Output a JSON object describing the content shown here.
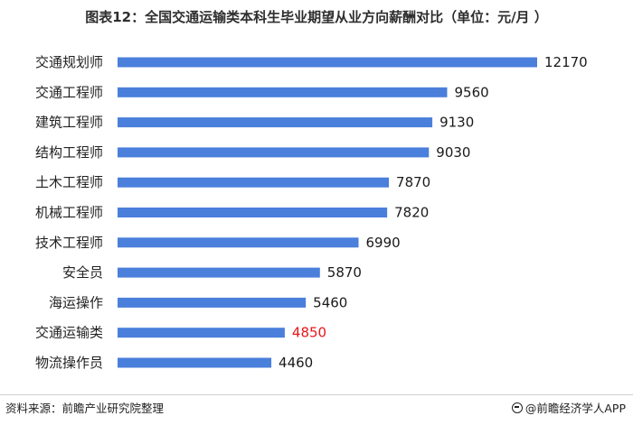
{
  "title": "图表12：全国交通运输类本科生毕业期望从业方向薪酬对比（单位：元/月  ）",
  "footer": {
    "source": "资料来源：前瞻产业研究院整理",
    "brand": "@前瞻经济学人APP"
  },
  "colors": {
    "bar": "#4a7fdb",
    "highlight_value": "#e8161a",
    "value_text": "#1a1a1a",
    "category_text": "#222222"
  },
  "chart_data": {
    "type": "bar",
    "orientation": "horizontal",
    "categories": [
      "交通规划师",
      "交通工程师",
      "建筑工程师",
      "结构工程师",
      "土木工程师",
      "机械工程师",
      "技术工程师",
      "安全员",
      "海运操作",
      "交通运输类",
      "物流操作员"
    ],
    "values": [
      12170,
      9560,
      9130,
      9030,
      7870,
      7820,
      6990,
      5870,
      5460,
      4850,
      4460
    ],
    "value_labels": [
      "12170",
      "9560",
      "9130",
      "9030",
      "7870",
      "7820",
      "6990",
      "5870",
      "5460",
      "4850",
      "4460"
    ],
    "highlight_category": "交通运输类",
    "title": "图表12：全国交通运输类本科生毕业期望从业方向薪酬对比（单位：元/月  ）",
    "xlabel": "",
    "ylabel": "",
    "xlim": [
      0,
      12170
    ],
    "grid": false,
    "legend": false
  }
}
